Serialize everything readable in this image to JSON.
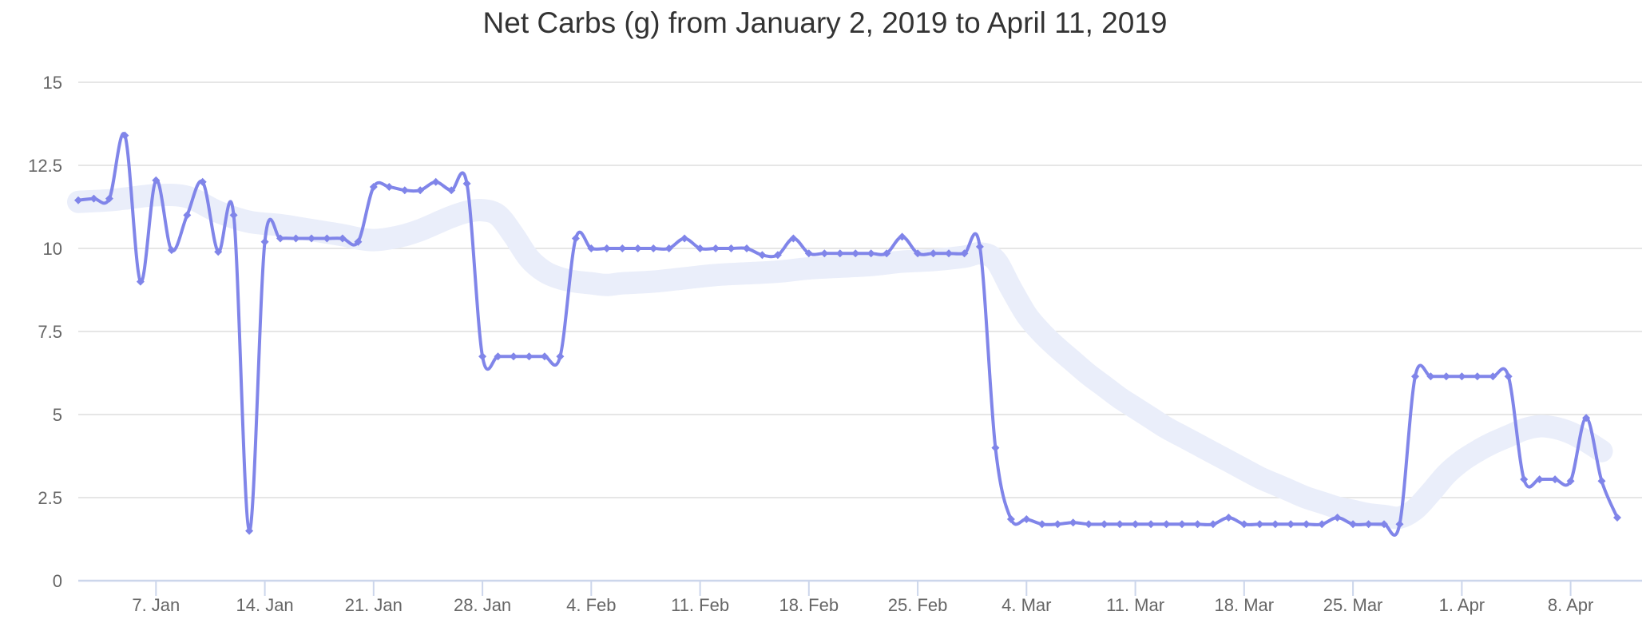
{
  "title": "Net Carbs (g) from January 2, 2019 to April 11, 2019",
  "colors": {
    "series_line": "#8085E9",
    "marker": "#8085E9",
    "trend_band": "#EAEEFA",
    "gridline": "#E6E6E6",
    "axis_line": "#CCD6EB",
    "tick": "#CCD6EB",
    "axis_label": "#666666",
    "title_color": "#333333",
    "background": "#FFFFFF"
  },
  "chart_data": {
    "type": "line",
    "title": "Net Carbs (g) from January 2, 2019 to April 11, 2019",
    "subtitle": "",
    "xlabel": "",
    "ylabel": "",
    "start_date": "2019-01-02",
    "end_date": "2019-04-11",
    "x_unit": "day",
    "ylim": [
      0,
      15
    ],
    "grid": "horizontal-only",
    "legend": "none",
    "y_ticks": [
      0,
      2.5,
      5,
      7.5,
      10,
      12.5,
      15
    ],
    "y_tick_labels": [
      "0",
      "2.5",
      "5",
      "7.5",
      "10",
      "12.5",
      "15"
    ],
    "x_ticks": [
      {
        "day": 5,
        "label": "7. Jan"
      },
      {
        "day": 12,
        "label": "14. Jan"
      },
      {
        "day": 19,
        "label": "21. Jan"
      },
      {
        "day": 26,
        "label": "28. Jan"
      },
      {
        "day": 33,
        "label": "4. Feb"
      },
      {
        "day": 40,
        "label": "11. Feb"
      },
      {
        "day": 47,
        "label": "18. Feb"
      },
      {
        "day": 54,
        "label": "25. Feb"
      },
      {
        "day": 61,
        "label": "4. Mar"
      },
      {
        "day": 68,
        "label": "11. Mar"
      },
      {
        "day": 75,
        "label": "18. Mar"
      },
      {
        "day": 82,
        "label": "25. Mar"
      },
      {
        "day": 89,
        "label": "1. Apr"
      },
      {
        "day": 96,
        "label": "8. Apr"
      }
    ],
    "series": [
      {
        "name": "Net Carbs (g)",
        "type": "spline",
        "marker": "diamond",
        "color": "#8085E9",
        "first_day": "2019-01-02",
        "values": [
          11.45,
          11.5,
          11.5,
          13.4,
          9.0,
          12.05,
          9.95,
          11.0,
          12.0,
          9.9,
          11.0,
          1.5,
          10.2,
          10.3,
          10.3,
          10.3,
          10.3,
          10.3,
          10.2,
          11.85,
          11.85,
          11.75,
          11.75,
          12.0,
          11.75,
          11.95,
          6.75,
          6.75,
          6.75,
          6.75,
          6.75,
          6.75,
          10.3,
          10.0,
          10.0,
          10.0,
          10.0,
          10.0,
          10.0,
          10.3,
          10.0,
          10.0,
          10.0,
          10.0,
          9.8,
          9.8,
          10.3,
          9.85,
          9.85,
          9.85,
          9.85,
          9.85,
          9.85,
          10.35,
          9.85,
          9.85,
          9.85,
          9.85,
          10.05,
          4.0,
          1.85,
          1.85,
          1.7,
          1.7,
          1.75,
          1.7,
          1.7,
          1.7,
          1.7,
          1.7,
          1.7,
          1.7,
          1.7,
          1.7,
          1.9,
          1.7,
          1.7,
          1.7,
          1.7,
          1.7,
          1.7,
          1.9,
          1.7,
          1.7,
          1.7,
          1.7,
          6.15,
          6.15,
          6.15,
          6.15,
          6.15,
          6.15,
          6.15,
          3.05,
          3.05,
          3.05,
          3.0,
          4.9,
          3.0,
          1.9
        ]
      },
      {
        "name": "Smoothed trend band",
        "type": "thick-spline",
        "marker": "none",
        "color": "#EAEEFA",
        "points": [
          [
            0,
            11.4
          ],
          [
            2,
            11.45
          ],
          [
            3,
            11.5
          ],
          [
            5,
            11.6
          ],
          [
            7,
            11.55
          ],
          [
            9,
            11.1
          ],
          [
            11,
            10.8
          ],
          [
            13,
            10.7
          ],
          [
            15,
            10.55
          ],
          [
            17,
            10.4
          ],
          [
            18,
            10.3
          ],
          [
            19,
            10.25
          ],
          [
            20,
            10.3
          ],
          [
            21,
            10.4
          ],
          [
            22,
            10.55
          ],
          [
            23,
            10.75
          ],
          [
            24,
            10.95
          ],
          [
            25,
            11.1
          ],
          [
            26,
            11.15
          ],
          [
            27,
            11.0
          ],
          [
            28,
            10.4
          ],
          [
            29,
            9.7
          ],
          [
            30,
            9.3
          ],
          [
            31,
            9.1
          ],
          [
            32,
            9.0
          ],
          [
            33,
            8.95
          ],
          [
            34,
            8.9
          ],
          [
            35,
            8.95
          ],
          [
            37,
            9.0
          ],
          [
            39,
            9.1
          ],
          [
            41,
            9.2
          ],
          [
            43,
            9.25
          ],
          [
            45,
            9.3
          ],
          [
            47,
            9.4
          ],
          [
            49,
            9.45
          ],
          [
            51,
            9.5
          ],
          [
            53,
            9.6
          ],
          [
            55,
            9.65
          ],
          [
            57,
            9.75
          ],
          [
            58,
            9.85
          ],
          [
            59,
            9.65
          ],
          [
            60,
            8.8
          ],
          [
            61,
            8.0
          ],
          [
            62,
            7.45
          ],
          [
            63,
            7.0
          ],
          [
            64,
            6.6
          ],
          [
            65,
            6.2
          ],
          [
            66,
            5.85
          ],
          [
            67,
            5.5
          ],
          [
            68,
            5.2
          ],
          [
            69,
            4.9
          ],
          [
            70,
            4.6
          ],
          [
            71,
            4.35
          ],
          [
            72,
            4.1
          ],
          [
            73,
            3.85
          ],
          [
            74,
            3.6
          ],
          [
            75,
            3.35
          ],
          [
            76,
            3.1
          ],
          [
            77,
            2.9
          ],
          [
            78,
            2.7
          ],
          [
            79,
            2.5
          ],
          [
            80,
            2.35
          ],
          [
            81,
            2.2
          ],
          [
            82,
            2.1
          ],
          [
            83,
            2.0
          ],
          [
            84,
            1.95
          ],
          [
            85,
            1.9
          ],
          [
            86,
            2.15
          ],
          [
            87,
            2.65
          ],
          [
            88,
            3.2
          ],
          [
            89,
            3.6
          ],
          [
            90,
            3.9
          ],
          [
            91,
            4.15
          ],
          [
            92,
            4.35
          ],
          [
            93,
            4.55
          ],
          [
            94,
            4.65
          ],
          [
            95,
            4.6
          ],
          [
            96,
            4.45
          ],
          [
            97,
            4.2
          ],
          [
            98,
            3.9
          ]
        ]
      }
    ]
  }
}
